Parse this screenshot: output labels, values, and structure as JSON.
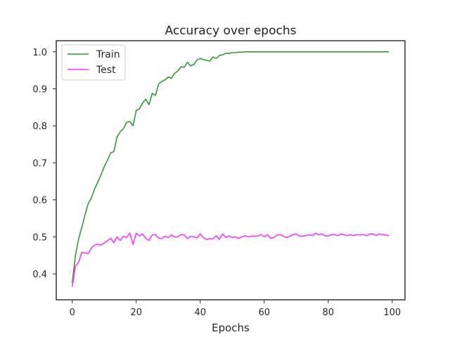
{
  "chart_data": {
    "type": "line",
    "title": "Accuracy over epochs",
    "xlabel": "Epochs",
    "ylabel": "",
    "xlim": [
      -5,
      104
    ],
    "ylim": [
      0.33,
      1.03
    ],
    "xticks": [
      0,
      20,
      40,
      60,
      80,
      100
    ],
    "yticks": [
      0.4,
      0.5,
      0.6,
      0.7,
      0.8,
      0.9,
      1.0
    ],
    "ytick_labels": [
      "0.4",
      "0.5",
      "0.6",
      "0.7",
      "0.8",
      "0.9",
      "1.0"
    ],
    "grid": false,
    "legend": "top-left",
    "x": [
      0,
      1,
      2,
      3,
      4,
      5,
      6,
      7,
      8,
      9,
      10,
      11,
      12,
      13,
      14,
      15,
      16,
      17,
      18,
      19,
      20,
      21,
      22,
      23,
      24,
      25,
      26,
      27,
      28,
      29,
      30,
      31,
      32,
      33,
      34,
      35,
      36,
      37,
      38,
      39,
      40,
      41,
      42,
      43,
      44,
      45,
      46,
      47,
      48,
      49,
      50,
      51,
      52,
      53,
      54,
      55,
      56,
      57,
      58,
      59,
      60,
      61,
      62,
      63,
      64,
      65,
      66,
      67,
      68,
      69,
      70,
      71,
      72,
      73,
      74,
      75,
      76,
      77,
      78,
      79,
      80,
      81,
      82,
      83,
      84,
      85,
      86,
      87,
      88,
      89,
      90,
      91,
      92,
      93,
      94,
      95,
      96,
      97,
      98,
      99
    ],
    "series": [
      {
        "name": "Train",
        "color": "#339933",
        "values": [
          0.375,
          0.45,
          0.495,
          0.525,
          0.56,
          0.59,
          0.605,
          0.63,
          0.648,
          0.668,
          0.69,
          0.707,
          0.727,
          0.73,
          0.77,
          0.784,
          0.792,
          0.81,
          0.812,
          0.8,
          0.842,
          0.846,
          0.862,
          0.872,
          0.857,
          0.888,
          0.882,
          0.913,
          0.92,
          0.924,
          0.932,
          0.928,
          0.942,
          0.948,
          0.96,
          0.958,
          0.972,
          0.962,
          0.966,
          0.978,
          0.982,
          0.979,
          0.977,
          0.975,
          0.986,
          0.982,
          0.99,
          0.992,
          0.996,
          0.996,
          0.998,
          0.998,
          0.999,
          0.999,
          1.0,
          1.0,
          1.0,
          1.0,
          1.0,
          1.0,
          1.0,
          1.0,
          1.0,
          1.0,
          1.0,
          1.0,
          1.0,
          1.0,
          1.0,
          1.0,
          1.0,
          1.0,
          1.0,
          1.0,
          1.0,
          1.0,
          1.0,
          1.0,
          1.0,
          1.0,
          1.0,
          1.0,
          1.0,
          1.0,
          1.0,
          1.0,
          1.0,
          1.0,
          1.0,
          1.0,
          1.0,
          1.0,
          1.0,
          1.0,
          1.0,
          1.0,
          1.0,
          1.0,
          1.0,
          1.0
        ]
      },
      {
        "name": "Test",
        "color": "#ff33ff",
        "values": [
          0.365,
          0.42,
          0.432,
          0.458,
          0.457,
          0.455,
          0.47,
          0.478,
          0.48,
          0.478,
          0.483,
          0.49,
          0.496,
          0.484,
          0.5,
          0.49,
          0.502,
          0.498,
          0.51,
          0.48,
          0.51,
          0.502,
          0.508,
          0.496,
          0.49,
          0.505,
          0.506,
          0.497,
          0.495,
          0.502,
          0.498,
          0.505,
          0.5,
          0.5,
          0.506,
          0.505,
          0.495,
          0.502,
          0.5,
          0.497,
          0.508,
          0.498,
          0.493,
          0.495,
          0.495,
          0.503,
          0.493,
          0.508,
          0.498,
          0.503,
          0.498,
          0.5,
          0.496,
          0.5,
          0.503,
          0.5,
          0.502,
          0.502,
          0.502,
          0.506,
          0.5,
          0.506,
          0.496,
          0.498,
          0.505,
          0.506,
          0.502,
          0.498,
          0.502,
          0.506,
          0.508,
          0.502,
          0.502,
          0.503,
          0.506,
          0.503,
          0.51,
          0.506,
          0.508,
          0.503,
          0.502,
          0.506,
          0.506,
          0.503,
          0.508,
          0.506,
          0.503,
          0.506,
          0.503,
          0.506,
          0.505,
          0.506,
          0.503,
          0.508,
          0.508,
          0.503,
          0.508,
          0.506,
          0.505,
          0.503
        ]
      }
    ]
  }
}
